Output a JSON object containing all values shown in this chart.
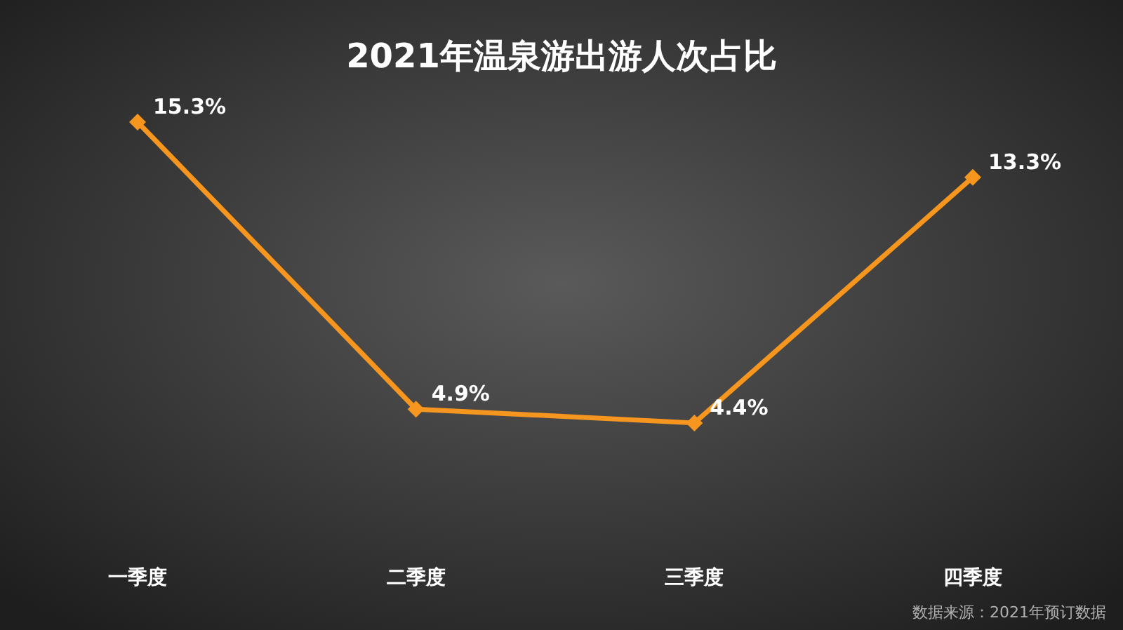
{
  "chart_data": {
    "type": "line",
    "title": "2021年温泉游出游人次占比",
    "categories": [
      "一季度",
      "二季度",
      "三季度",
      "四季度"
    ],
    "series": [
      {
        "color": "#f7961e",
        "values": [
          15.3,
          4.9,
          4.4,
          13.3
        ],
        "value_labels": [
          "15.3%",
          "4.9%",
          "4.4%",
          "13.3%"
        ]
      }
    ],
    "marker": "diamond",
    "line_style": "solid",
    "tick_labels": "x",
    "annotations": [
      "数据来源：2021年预订数据"
    ]
  }
}
